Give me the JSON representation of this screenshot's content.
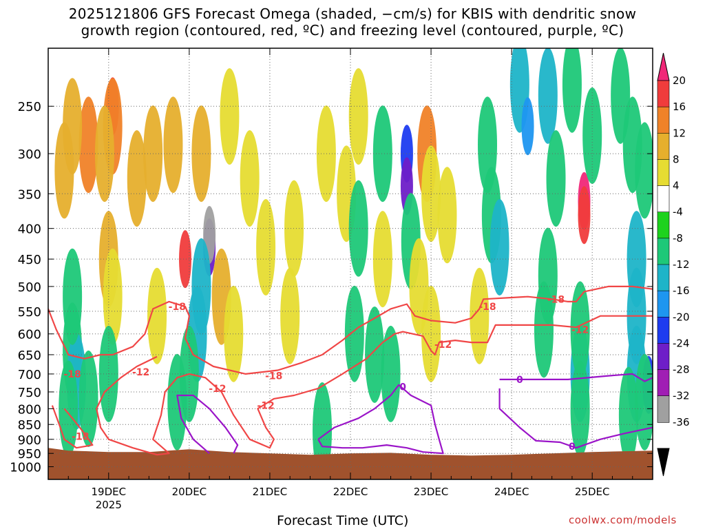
{
  "chart_data": {
    "type": "heatmap",
    "title_line1": "2025121806 GFS Forecast Omega (shaded, −cm/s) for KBIS with dendritic snow",
    "title_line2": "growth region (contoured, red, ºC) and freezing level (contoured, purple, ºC)",
    "xlabel": "Forecast Time (UTC)",
    "credit": "coolwx.com/models",
    "x_ticks": [
      {
        "day": 19,
        "label": "19DEC",
        "sublabel": "2025"
      },
      {
        "day": 20,
        "label": "20DEC"
      },
      {
        "day": 21,
        "label": "21DEC"
      },
      {
        "day": 22,
        "label": "22DEC"
      },
      {
        "day": 23,
        "label": "23DEC"
      },
      {
        "day": 24,
        "label": "24DEC"
      },
      {
        "day": 25,
        "label": "25DEC"
      }
    ],
    "xlim_days": [
      18.25,
      25.75
    ],
    "y_axis": "pressure (hPa), log scale, inverted",
    "y_ticks": [
      250,
      300,
      350,
      400,
      450,
      500,
      550,
      600,
      650,
      700,
      750,
      800,
      850,
      900,
      950,
      1000
    ],
    "ylim": [
      200,
      1050
    ],
    "grid": "dotted",
    "colorbar": {
      "levels": [
        20,
        16,
        12,
        8,
        4,
        -4,
        -8,
        -12,
        -16,
        -20,
        -24,
        -28,
        -32,
        -36
      ],
      "colors": [
        "#f02878",
        "#f03c3c",
        "#f08228",
        "#e6af2d",
        "#e6dc32",
        "#ffffff",
        "#1ed21e",
        "#1ec878",
        "#1eb4c8",
        "#1e96f0",
        "#1e3cf0",
        "#6e1ec8",
        "#a01eb4",
        "#a0a0a0",
        "#000000"
      ],
      "top_arrow": "#f02878",
      "bottom_arrow": "#000000"
    },
    "omega_cells": [
      {
        "x": 19.05,
        "p": 250,
        "v": 16
      },
      {
        "x": 19.05,
        "p": 270,
        "v": 12
      },
      {
        "x": 18.75,
        "p": 290,
        "v": 12
      },
      {
        "x": 18.55,
        "p": 270,
        "v": 8
      },
      {
        "x": 18.45,
        "p": 320,
        "v": 8
      },
      {
        "x": 18.95,
        "p": 300,
        "v": 8
      },
      {
        "x": 19.35,
        "p": 330,
        "v": 8
      },
      {
        "x": 19.55,
        "p": 300,
        "v": 8
      },
      {
        "x": 19.8,
        "p": 290,
        "v": 8
      },
      {
        "x": 20.15,
        "p": 300,
        "v": 8
      },
      {
        "x": 20.5,
        "p": 260,
        "v": 4
      },
      {
        "x": 20.75,
        "p": 330,
        "v": 4
      },
      {
        "x": 19.0,
        "p": 450,
        "v": 8
      },
      {
        "x": 19.05,
        "p": 520,
        "v": 4
      },
      {
        "x": 19.6,
        "p": 560,
        "v": 4
      },
      {
        "x": 19.95,
        "p": 450,
        "v": 16
      },
      {
        "x": 20.25,
        "p": 430,
        "v": -24
      },
      {
        "x": 20.25,
        "p": 410,
        "v": -32
      },
      {
        "x": 20.15,
        "p": 500,
        "v": -12
      },
      {
        "x": 20.1,
        "p": 600,
        "v": -12
      },
      {
        "x": 20.0,
        "p": 700,
        "v": -8
      },
      {
        "x": 19.85,
        "p": 780,
        "v": -8
      },
      {
        "x": 20.4,
        "p": 520,
        "v": 8
      },
      {
        "x": 20.55,
        "p": 600,
        "v": 4
      },
      {
        "x": 20.95,
        "p": 430,
        "v": 4
      },
      {
        "x": 21.3,
        "p": 400,
        "v": 4
      },
      {
        "x": 21.25,
        "p": 560,
        "v": 4
      },
      {
        "x": 18.55,
        "p": 640,
        "v": -8
      },
      {
        "x": 18.6,
        "p": 720,
        "v": -12
      },
      {
        "x": 18.5,
        "p": 800,
        "v": -8
      },
      {
        "x": 18.75,
        "p": 770,
        "v": -8
      },
      {
        "x": 19.0,
        "p": 700,
        "v": -8
      },
      {
        "x": 18.55,
        "p": 520,
        "v": -8
      },
      {
        "x": 21.7,
        "p": 300,
        "v": 4
      },
      {
        "x": 21.95,
        "p": 350,
        "v": 4
      },
      {
        "x": 22.1,
        "p": 260,
        "v": 4
      },
      {
        "x": 22.1,
        "p": 400,
        "v": -8
      },
      {
        "x": 22.4,
        "p": 300,
        "v": -8
      },
      {
        "x": 22.4,
        "p": 450,
        "v": 4
      },
      {
        "x": 22.7,
        "p": 300,
        "v": -20
      },
      {
        "x": 22.7,
        "p": 340,
        "v": -24
      },
      {
        "x": 22.75,
        "p": 420,
        "v": -8
      },
      {
        "x": 22.95,
        "p": 300,
        "v": 12
      },
      {
        "x": 23.0,
        "p": 350,
        "v": 4
      },
      {
        "x": 23.2,
        "p": 380,
        "v": 4
      },
      {
        "x": 22.85,
        "p": 500,
        "v": 4
      },
      {
        "x": 23.0,
        "p": 600,
        "v": 4
      },
      {
        "x": 22.3,
        "p": 650,
        "v": -8
      },
      {
        "x": 22.5,
        "p": 700,
        "v": -8
      },
      {
        "x": 22.05,
        "p": 600,
        "v": -8
      },
      {
        "x": 21.65,
        "p": 870,
        "v": -8
      },
      {
        "x": 23.75,
        "p": 380,
        "v": -8
      },
      {
        "x": 23.85,
        "p": 430,
        "v": -12
      },
      {
        "x": 23.7,
        "p": 290,
        "v": -8
      },
      {
        "x": 24.1,
        "p": 230,
        "v": -12
      },
      {
        "x": 24.2,
        "p": 270,
        "v": -16
      },
      {
        "x": 24.45,
        "p": 240,
        "v": -12
      },
      {
        "x": 24.55,
        "p": 330,
        "v": -8
      },
      {
        "x": 24.75,
        "p": 230,
        "v": -8
      },
      {
        "x": 24.9,
        "p": 360,
        "v": 20
      },
      {
        "x": 24.9,
        "p": 380,
        "v": 16
      },
      {
        "x": 25.0,
        "p": 280,
        "v": -8
      },
      {
        "x": 25.35,
        "p": 240,
        "v": -8
      },
      {
        "x": 25.5,
        "p": 290,
        "v": -8
      },
      {
        "x": 25.65,
        "p": 320,
        "v": -8
      },
      {
        "x": 25.55,
        "p": 450,
        "v": -12
      },
      {
        "x": 25.55,
        "p": 560,
        "v": -12
      },
      {
        "x": 25.55,
        "p": 700,
        "v": -12
      },
      {
        "x": 25.7,
        "p": 730,
        "v": -20
      },
      {
        "x": 25.65,
        "p": 780,
        "v": -8
      },
      {
        "x": 24.85,
        "p": 700,
        "v": -12
      },
      {
        "x": 24.85,
        "p": 800,
        "v": -8
      },
      {
        "x": 25.45,
        "p": 820,
        "v": -8
      },
      {
        "x": 24.4,
        "p": 590,
        "v": -8
      },
      {
        "x": 24.85,
        "p": 590,
        "v": -8
      },
      {
        "x": 24.45,
        "p": 480,
        "v": -8
      },
      {
        "x": 23.6,
        "p": 560,
        "v": 4
      }
    ],
    "dgz_contours": [
      {
        "level": -18,
        "label": "-18",
        "points": [
          [
            18.25,
            545
          ],
          [
            18.35,
            590
          ],
          [
            18.5,
            650
          ],
          [
            18.7,
            660
          ],
          [
            18.9,
            650
          ],
          [
            19.05,
            650
          ],
          [
            19.3,
            630
          ],
          [
            19.45,
            600
          ],
          [
            19.55,
            545
          ],
          [
            19.75,
            530
          ],
          [
            19.95,
            540
          ],
          [
            20.0,
            560
          ],
          [
            19.95,
            610
          ],
          [
            20.05,
            650
          ],
          [
            20.3,
            680
          ],
          [
            20.7,
            700
          ],
          [
            21.1,
            690
          ],
          [
            21.4,
            670
          ],
          [
            21.65,
            650
          ],
          [
            21.9,
            615
          ],
          [
            22.1,
            585
          ],
          [
            22.3,
            565
          ],
          [
            22.5,
            545
          ],
          [
            22.7,
            535
          ],
          [
            22.8,
            560
          ],
          [
            23.0,
            570
          ],
          [
            23.3,
            575
          ],
          [
            23.5,
            565
          ],
          [
            23.6,
            545
          ],
          [
            23.65,
            525
          ],
          [
            24.2,
            520
          ],
          [
            24.5,
            525
          ],
          [
            24.7,
            530
          ],
          [
            24.8,
            530
          ],
          [
            24.9,
            510
          ],
          [
            25.2,
            500
          ],
          [
            25.5,
            500
          ],
          [
            25.75,
            505
          ]
        ]
      },
      {
        "level": -12,
        "label": "-12",
        "points": [
          [
            19.6,
            655
          ],
          [
            19.35,
            680
          ],
          [
            19.15,
            710
          ],
          [
            18.95,
            750
          ],
          [
            18.85,
            800
          ],
          [
            18.9,
            860
          ],
          [
            19.0,
            900
          ],
          [
            19.3,
            930
          ],
          [
            19.6,
            955
          ],
          [
            19.75,
            950
          ],
          [
            19.55,
            900
          ],
          [
            19.65,
            820
          ],
          [
            19.7,
            750
          ],
          [
            19.85,
            710
          ],
          [
            20.0,
            700
          ],
          [
            20.2,
            710
          ],
          [
            20.4,
            750
          ],
          [
            20.55,
            820
          ],
          [
            20.75,
            900
          ],
          [
            21.0,
            930
          ],
          [
            21.05,
            900
          ],
          [
            20.95,
            860
          ],
          [
            20.85,
            800
          ],
          [
            21.05,
            770
          ],
          [
            21.3,
            760
          ],
          [
            21.6,
            740
          ],
          [
            21.9,
            700
          ],
          [
            22.2,
            660
          ],
          [
            22.4,
            620
          ],
          [
            22.55,
            600
          ],
          [
            22.65,
            595
          ],
          [
            22.9,
            605
          ],
          [
            23.0,
            640
          ],
          [
            23.05,
            650
          ],
          [
            23.1,
            620
          ],
          [
            23.3,
            615
          ],
          [
            23.5,
            620
          ],
          [
            23.7,
            620
          ],
          [
            23.8,
            580
          ],
          [
            24.1,
            580
          ],
          [
            24.5,
            580
          ],
          [
            24.8,
            585
          ],
          [
            25.1,
            560
          ],
          [
            25.4,
            560
          ],
          [
            25.75,
            560
          ]
        ]
      },
      {
        "level": -18,
        "label": "-18",
        "points": [
          [
            18.3,
            790
          ],
          [
            18.4,
            860
          ],
          [
            18.45,
            900
          ],
          [
            18.6,
            930
          ],
          [
            18.8,
            920
          ],
          [
            18.7,
            880
          ],
          [
            18.55,
            830
          ],
          [
            18.45,
            800
          ]
        ]
      }
    ],
    "dgz_labels": [
      {
        "x": 19.85,
        "p": 540,
        "text": "-18"
      },
      {
        "x": 18.55,
        "p": 700,
        "text": "-18"
      },
      {
        "x": 19.4,
        "p": 695,
        "text": "-12"
      },
      {
        "x": 20.35,
        "p": 740,
        "text": "-12"
      },
      {
        "x": 21.05,
        "p": 705,
        "text": "-18"
      },
      {
        "x": 20.95,
        "p": 790,
        "text": "-12"
      },
      {
        "x": 23.7,
        "p": 540,
        "text": "-18"
      },
      {
        "x": 23.15,
        "p": 625,
        "text": "-12"
      },
      {
        "x": 24.55,
        "p": 525,
        "text": "-18"
      },
      {
        "x": 24.85,
        "p": 590,
        "text": "-12"
      },
      {
        "x": 18.65,
        "p": 890,
        "text": "-18"
      }
    ],
    "freezing_contours": [
      {
        "level": 0,
        "label": "0",
        "points": [
          [
            20.25,
            950
          ],
          [
            20.05,
            900
          ],
          [
            19.9,
            830
          ],
          [
            19.85,
            760
          ],
          [
            20.05,
            760
          ],
          [
            20.25,
            800
          ],
          [
            20.45,
            860
          ],
          [
            20.6,
            920
          ],
          [
            20.55,
            950
          ]
        ]
      },
      {
        "level": 0,
        "label": "0",
        "points": [
          [
            21.6,
            900
          ],
          [
            21.8,
            860
          ],
          [
            22.1,
            830
          ],
          [
            22.3,
            800
          ],
          [
            22.5,
            760
          ],
          [
            22.6,
            730
          ],
          [
            22.75,
            760
          ],
          [
            23.0,
            790
          ],
          [
            23.05,
            850
          ],
          [
            23.1,
            900
          ],
          [
            23.15,
            950
          ],
          [
            22.9,
            945
          ],
          [
            22.7,
            930
          ],
          [
            22.45,
            920
          ],
          [
            22.15,
            930
          ],
          [
            21.9,
            930
          ],
          [
            21.65,
            925
          ],
          [
            21.6,
            900
          ]
        ]
      },
      {
        "level": 0,
        "label": "0",
        "points": [
          [
            23.85,
            715
          ],
          [
            24.3,
            715
          ],
          [
            24.7,
            715
          ],
          [
            25.2,
            705
          ],
          [
            25.5,
            700
          ],
          [
            25.65,
            720
          ],
          [
            25.75,
            710
          ]
        ]
      },
      {
        "level": 0,
        "label": "0",
        "points": [
          [
            23.85,
            740
          ],
          [
            23.85,
            800
          ],
          [
            24.1,
            860
          ],
          [
            24.3,
            905
          ],
          [
            24.6,
            910
          ],
          [
            24.8,
            930
          ],
          [
            25.1,
            900
          ],
          [
            25.4,
            880
          ],
          [
            25.75,
            860
          ]
        ]
      }
    ],
    "freezing_labels": [
      {
        "x": 24.1,
        "p": 715,
        "text": "0"
      },
      {
        "x": 22.65,
        "p": 735,
        "text": "0"
      },
      {
        "x": 24.75,
        "p": 925,
        "text": "0"
      }
    ],
    "terrain": {
      "color": "#a0522d",
      "surface_pressure": [
        [
          18.25,
          930
        ],
        [
          18.5,
          940
        ],
        [
          19.0,
          945
        ],
        [
          19.5,
          945
        ],
        [
          20.0,
          935
        ],
        [
          20.5,
          945
        ],
        [
          21.0,
          950
        ],
        [
          21.5,
          955
        ],
        [
          22.0,
          950
        ],
        [
          22.5,
          948
        ],
        [
          23.0,
          955
        ],
        [
          23.5,
          958
        ],
        [
          24.0,
          955
        ],
        [
          24.5,
          950
        ],
        [
          25.0,
          945
        ],
        [
          25.75,
          940
        ]
      ]
    }
  }
}
